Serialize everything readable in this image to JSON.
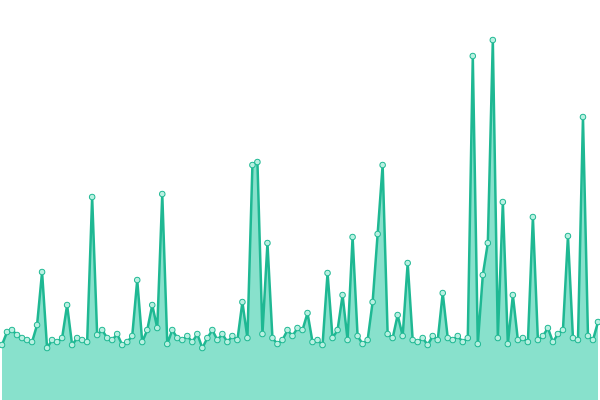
{
  "chart_data": {
    "type": "area",
    "color": "#1fb893",
    "fill": "#88e1cc",
    "marker_fill": "#b9f0e1",
    "ylim": [
      0,
      400
    ],
    "values": [
      55,
      68,
      70,
      65,
      62,
      60,
      58,
      75,
      128,
      52,
      60,
      58,
      62,
      95,
      55,
      62,
      60,
      58,
      203,
      65,
      70,
      62,
      60,
      66,
      55,
      58,
      64,
      120,
      58,
      70,
      95,
      72,
      206,
      56,
      70,
      62,
      60,
      64,
      58,
      66,
      52,
      62,
      70,
      60,
      66,
      58,
      64,
      60,
      98,
      62,
      235,
      238,
      66,
      157,
      62,
      56,
      60,
      70,
      64,
      72,
      70,
      87,
      58,
      60,
      55,
      127,
      62,
      70,
      105,
      60,
      163,
      64,
      56,
      60,
      98,
      166,
      235,
      66,
      62,
      85,
      64,
      137,
      60,
      58,
      62,
      55,
      64,
      60,
      107,
      62,
      60,
      64,
      58,
      62,
      344,
      56,
      125,
      157,
      360,
      62,
      198,
      56,
      105,
      60,
      62,
      58,
      183,
      60,
      64,
      72,
      58,
      66,
      70,
      164,
      62,
      60,
      283,
      64,
      60,
      78
    ]
  }
}
